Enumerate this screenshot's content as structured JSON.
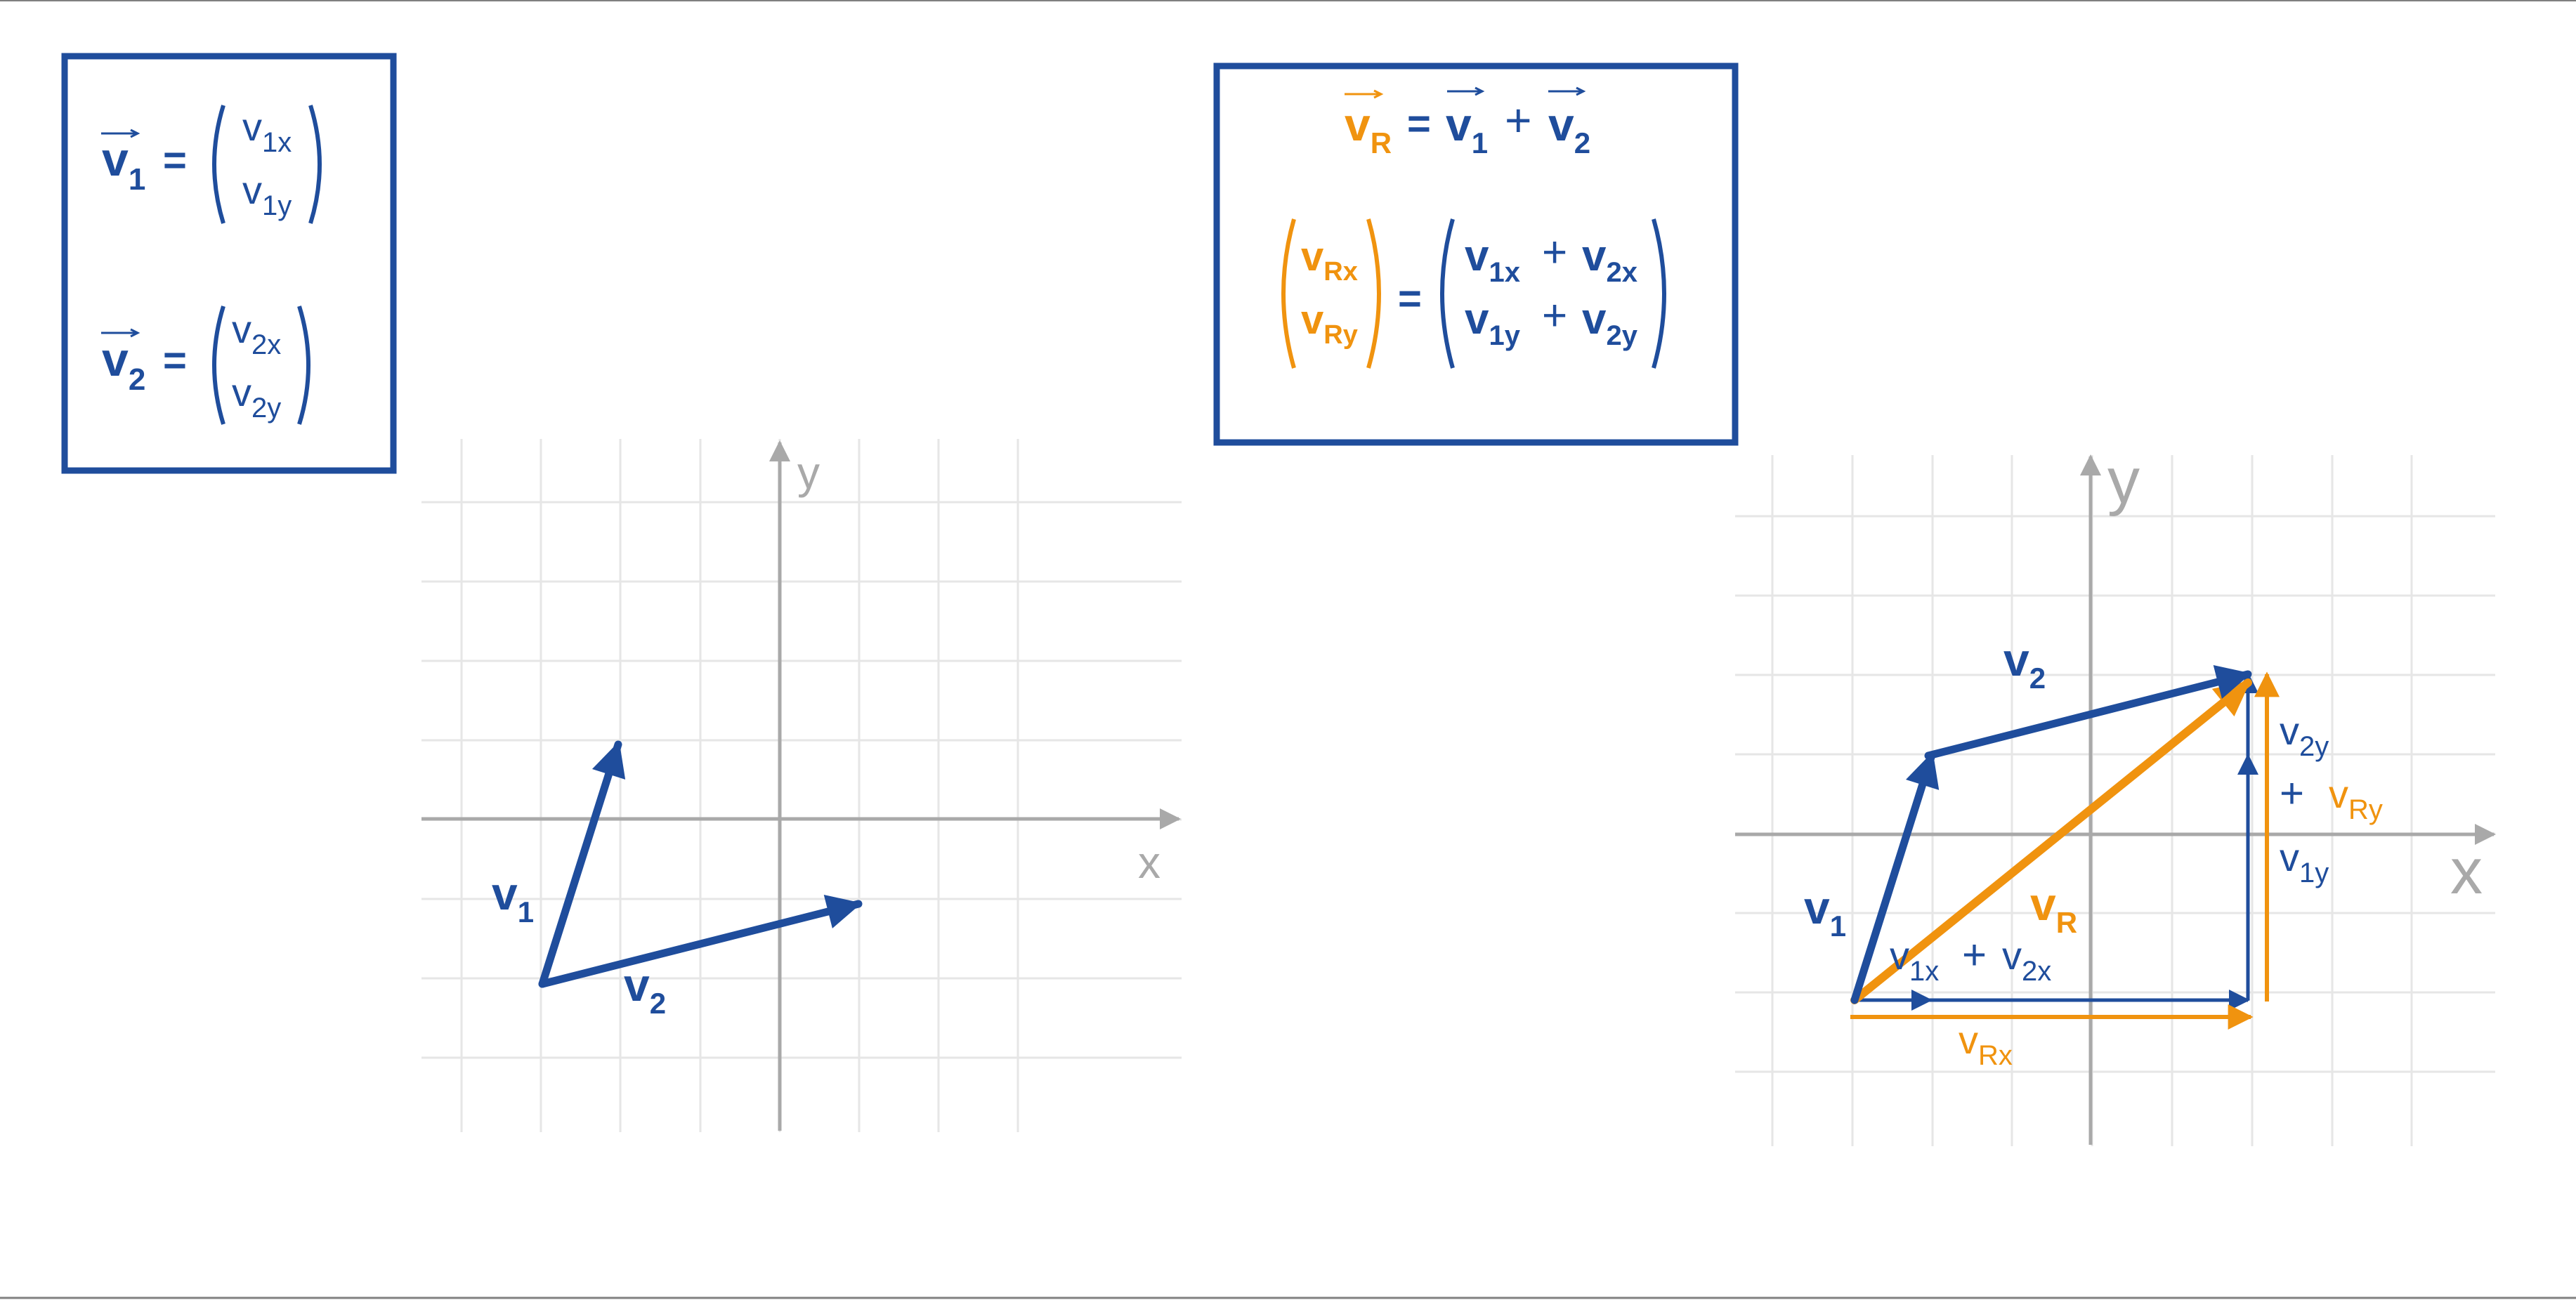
{
  "colors": {
    "blue": "#1f4d9c",
    "orange": "#f0930f",
    "grid": "#e6e6e6",
    "axis": "#a9a9a9",
    "frame": "#808080"
  },
  "definitions_box": {
    "v1": {
      "letter": "v",
      "sub": "1",
      "equals": "=",
      "top": {
        "letter": "v",
        "sub": "1x"
      },
      "bottom": {
        "letter": "v",
        "sub": "1y"
      }
    },
    "v2": {
      "letter": "v",
      "sub": "2",
      "equals": "=",
      "top": {
        "letter": "v",
        "sub": "2x"
      },
      "bottom": {
        "letter": "v",
        "sub": "2y"
      }
    }
  },
  "sum_box": {
    "line1": {
      "vr": {
        "letter": "v",
        "sub": "R"
      },
      "equals": "=",
      "v1": {
        "letter": "v",
        "sub": "1"
      },
      "plus": "+",
      "v2": {
        "letter": "v",
        "sub": "2"
      }
    },
    "line2": {
      "left_top": {
        "letter": "v",
        "sub": "Rx"
      },
      "left_bottom": {
        "letter": "v",
        "sub": "Ry"
      },
      "equals": "=",
      "rt_a": {
        "letter": "v",
        "sub": "1x"
      },
      "rt_plus": "+",
      "rt_b": {
        "letter": "v",
        "sub": "2x"
      },
      "rb_a": {
        "letter": "v",
        "sub": "1y"
      },
      "rb_plus": "+",
      "rb_b": {
        "letter": "v",
        "sub": "2y"
      }
    }
  },
  "left_plot": {
    "x_axis_label": "x",
    "y_axis_label": "y",
    "v1_label": {
      "letter": "v",
      "sub": "1"
    },
    "v2_label": {
      "letter": "v",
      "sub": "2"
    }
  },
  "right_plot": {
    "x_axis_label": "x",
    "y_axis_label": "y",
    "v1_label": {
      "letter": "v",
      "sub": "1"
    },
    "v2_label": {
      "letter": "v",
      "sub": "2"
    },
    "vr_label": {
      "letter": "v",
      "sub": "R"
    },
    "x_sum": {
      "a": {
        "letter": "v",
        "sub": "1x"
      },
      "plus": "+",
      "b": {
        "letter": "v",
        "sub": "2x"
      }
    },
    "vrx_label": {
      "letter": "v",
      "sub": "Rx"
    },
    "y_sum": {
      "top": {
        "letter": "v",
        "sub": "2y"
      },
      "plus": "+",
      "bottom": {
        "letter": "v",
        "sub": "1y"
      }
    },
    "vry_label": {
      "letter": "v",
      "sub": "Ry"
    }
  }
}
